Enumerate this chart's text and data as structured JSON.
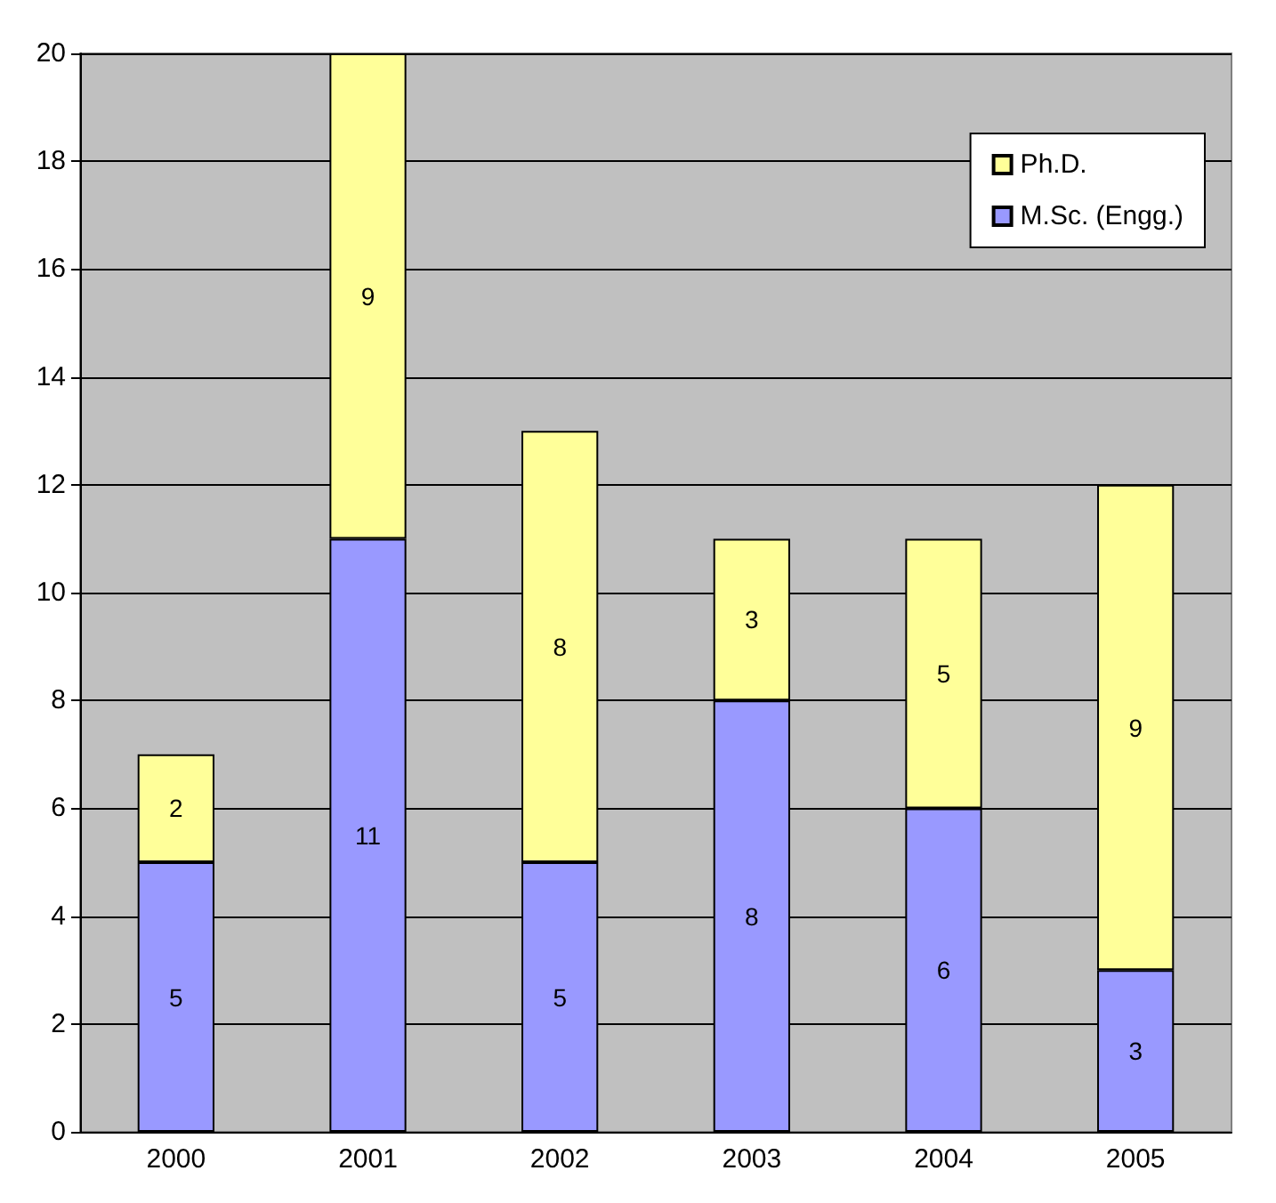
{
  "chart_data": {
    "type": "bar",
    "stacked": true,
    "categories": [
      "2000",
      "2001",
      "2002",
      "2003",
      "2004",
      "2005"
    ],
    "series": [
      {
        "name": "M.Sc. (Engg.)",
        "color": "#9999ff",
        "values": [
          5,
          11,
          5,
          8,
          6,
          3
        ]
      },
      {
        "name": "Ph.D.",
        "color": "#ffff99",
        "values": [
          2,
          9,
          8,
          3,
          5,
          9
        ]
      }
    ],
    "ylim": [
      0,
      20
    ],
    "yticks": [
      0,
      2,
      4,
      6,
      8,
      10,
      12,
      14,
      16,
      18,
      20
    ],
    "grid": "y",
    "legend": "top right",
    "data_labels": true
  }
}
